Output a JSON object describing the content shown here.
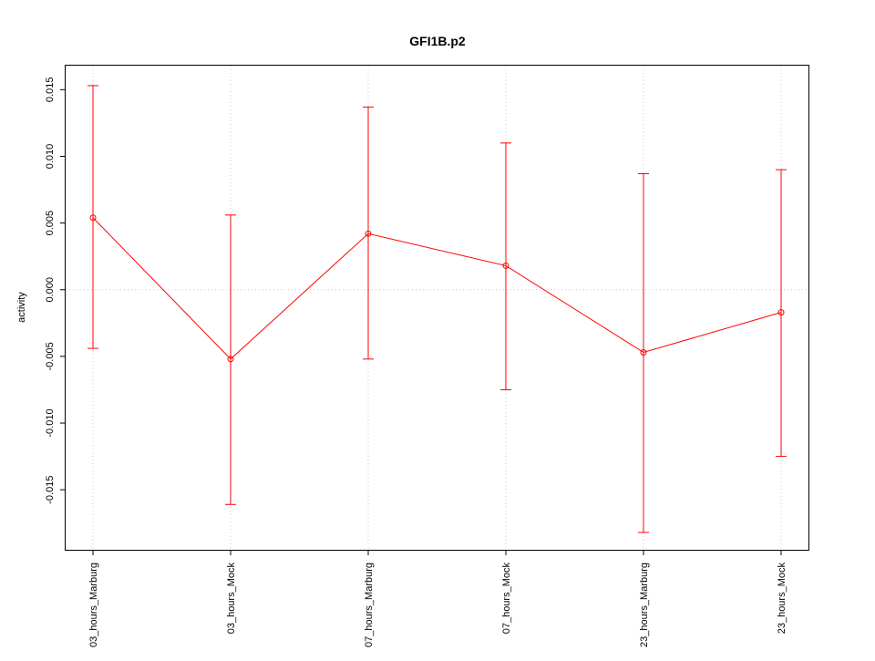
{
  "chart_data": {
    "type": "line",
    "title": "GFI1B.p2",
    "xlabel": "",
    "ylabel": "activity",
    "categories": [
      "03_hours_Marburg",
      "03_hours_Mock",
      "07_hours_Marburg",
      "07_hours_Mock",
      "23_hours_Marburg",
      "23_hours_Mock"
    ],
    "series": [
      {
        "values": [
          0.0054,
          -0.0052,
          0.0042,
          0.0018,
          -0.0047,
          -0.0017
        ],
        "upper": [
          0.0153,
          0.0056,
          0.0137,
          0.011,
          0.0087,
          0.009
        ],
        "lower": [
          -0.0044,
          -0.0161,
          -0.0052,
          -0.0075,
          -0.0182,
          -0.0125
        ],
        "color": "#ff0000"
      }
    ],
    "y_ticks": [
      "-0.015",
      "-0.010",
      "-0.005",
      "0.000",
      "0.005",
      "0.010",
      "0.015"
    ],
    "ylim": [
      -0.0195,
      0.0168
    ],
    "grid": true,
    "grid_style": "dotted",
    "zero_line": true,
    "error_bars": true,
    "legend": "none"
  }
}
